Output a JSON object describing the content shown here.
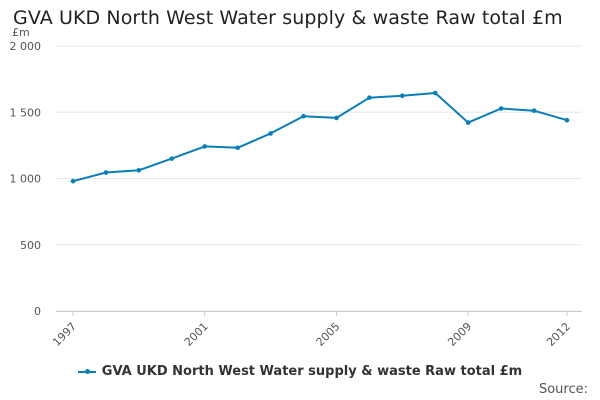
{
  "title": "GVA UKD North West Water supply & waste Raw total £m",
  "source_label": "Source:",
  "colors": {
    "series": "#0b7db7",
    "grid": "#e6e6e6",
    "axis_text": "#555555"
  },
  "chart_data": {
    "type": "line",
    "title": "GVA UKD North West Water supply & waste Raw total £m",
    "ylabel": "£m",
    "xlabel": "",
    "x": [
      1997,
      1998,
      1999,
      2000,
      2001,
      2002,
      2003,
      2004,
      2005,
      2006,
      2007,
      2008,
      2009,
      2010,
      2011,
      2012
    ],
    "x_tick_labels": [
      "1997",
      "2001",
      "2005",
      "2009",
      "2012"
    ],
    "y_tick_labels": [
      "0",
      "500",
      "1 000",
      "1 500",
      "2 000"
    ],
    "ylim": [
      0,
      2000
    ],
    "grid": true,
    "legend_position": "bottom",
    "series": [
      {
        "name": "GVA UKD North West Water supply & waste Raw total £m",
        "values": [
          980,
          1045,
          1062,
          1150,
          1242,
          1232,
          1340,
          1470,
          1457,
          1610,
          1625,
          1645,
          1422,
          1528,
          1512,
          1440
        ]
      }
    ]
  }
}
